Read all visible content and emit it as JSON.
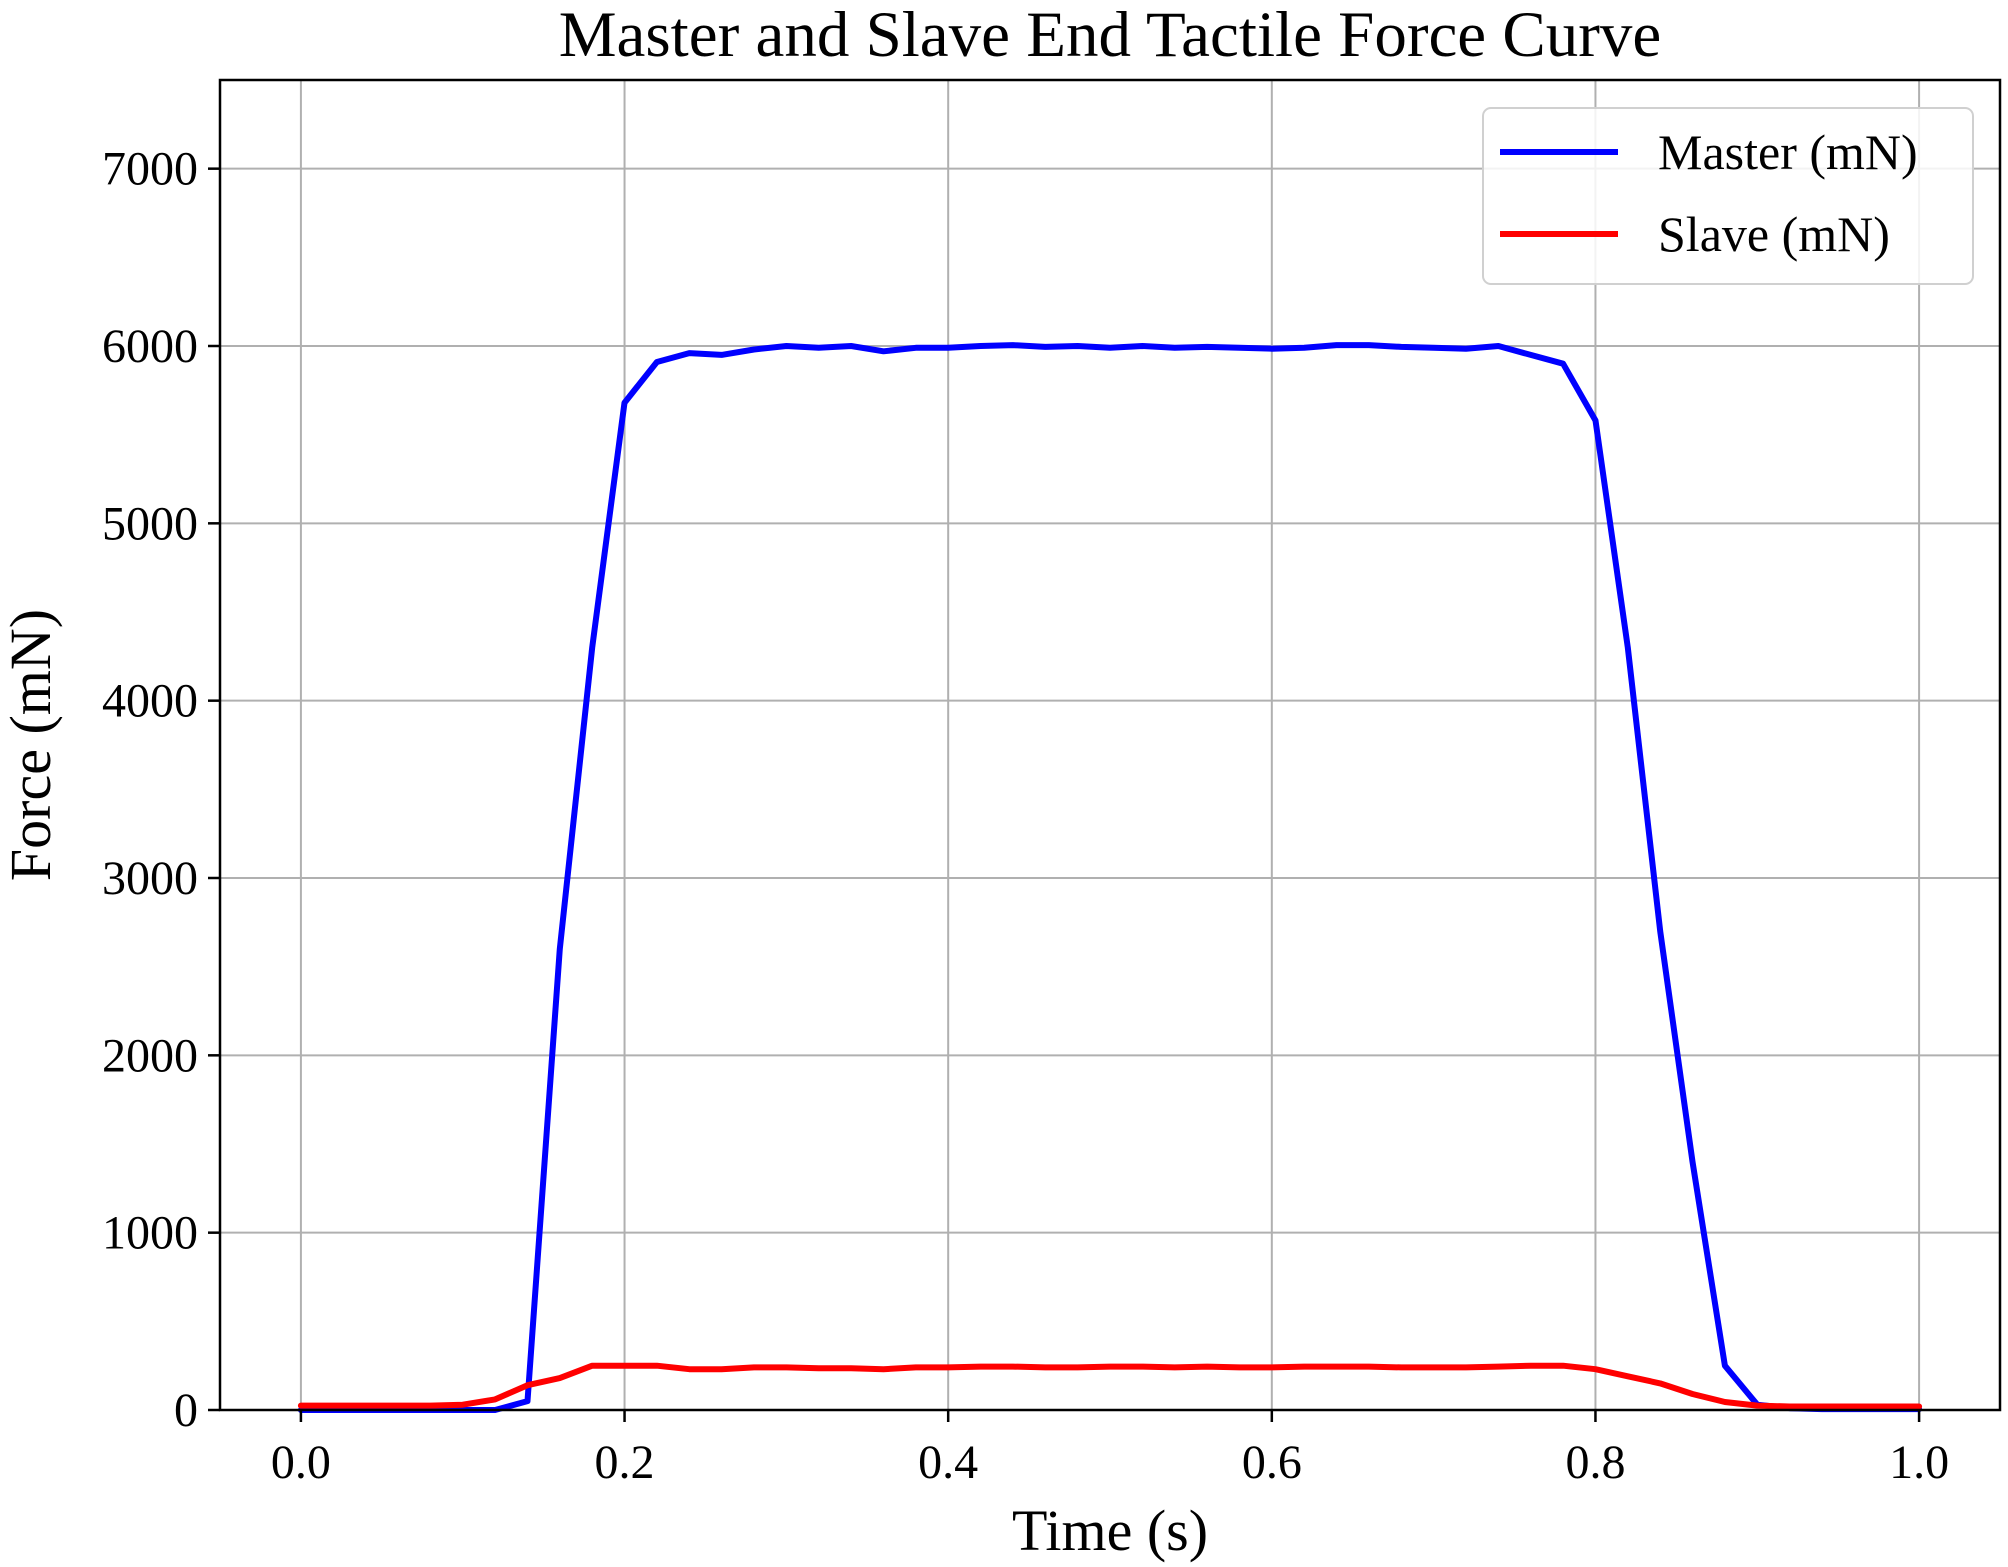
{
  "chart_data": {
    "type": "line",
    "title": "Master and Slave End Tactile Force Curve",
    "xlabel": "Time (s)",
    "ylabel": "Force (mN)",
    "xlim": [
      -0.05,
      1.05
    ],
    "ylim": [
      0,
      7500
    ],
    "x_ticks": [
      0.0,
      0.2,
      0.4,
      0.6,
      0.8,
      1.0
    ],
    "x_tick_labels": [
      "0.0",
      "0.2",
      "0.4",
      "0.6",
      "0.8",
      "1.0"
    ],
    "y_ticks": [
      0,
      1000,
      2000,
      3000,
      4000,
      5000,
      6000,
      7000
    ],
    "y_tick_labels": [
      "0",
      "1000",
      "2000",
      "3000",
      "4000",
      "5000",
      "6000",
      "7000"
    ],
    "grid": true,
    "legend_position": "upper right",
    "series": [
      {
        "name": "Master (mN)",
        "color": "#0000ff",
        "x": [
          0.0,
          0.02,
          0.04,
          0.06,
          0.08,
          0.1,
          0.12,
          0.14,
          0.16,
          0.18,
          0.2,
          0.22,
          0.24,
          0.26,
          0.28,
          0.3,
          0.32,
          0.34,
          0.36,
          0.38,
          0.4,
          0.42,
          0.44,
          0.46,
          0.48,
          0.5,
          0.52,
          0.54,
          0.56,
          0.58,
          0.6,
          0.62,
          0.64,
          0.66,
          0.68,
          0.7,
          0.72,
          0.74,
          0.76,
          0.78,
          0.8,
          0.82,
          0.84,
          0.86,
          0.88,
          0.9,
          0.92,
          0.94,
          0.96,
          0.98,
          1.0
        ],
        "y": [
          0,
          0,
          0,
          0,
          0,
          0,
          0,
          50,
          2600,
          4300,
          5680,
          5910,
          5960,
          5950,
          5980,
          6000,
          5990,
          6000,
          5970,
          5990,
          5990,
          6000,
          6005,
          5995,
          6000,
          5990,
          6000,
          5990,
          5995,
          5990,
          5985,
          5990,
          6005,
          6005,
          5995,
          5990,
          5985,
          6000,
          5950,
          5900,
          5580,
          4300,
          2700,
          1400,
          250,
          30,
          10,
          5,
          5,
          5,
          5
        ]
      },
      {
        "name": "Slave (mN)",
        "color": "#ff0000",
        "x": [
          0.0,
          0.02,
          0.04,
          0.06,
          0.08,
          0.1,
          0.12,
          0.14,
          0.16,
          0.18,
          0.2,
          0.22,
          0.24,
          0.26,
          0.28,
          0.3,
          0.32,
          0.34,
          0.36,
          0.38,
          0.4,
          0.42,
          0.44,
          0.46,
          0.48,
          0.5,
          0.52,
          0.54,
          0.56,
          0.58,
          0.6,
          0.62,
          0.64,
          0.66,
          0.68,
          0.7,
          0.72,
          0.74,
          0.76,
          0.78,
          0.8,
          0.82,
          0.84,
          0.86,
          0.88,
          0.9,
          0.92,
          0.94,
          0.96,
          0.98,
          1.0
        ],
        "y": [
          25,
          25,
          25,
          25,
          25,
          30,
          60,
          140,
          180,
          250,
          250,
          250,
          230,
          230,
          240,
          240,
          235,
          235,
          230,
          240,
          240,
          245,
          245,
          240,
          240,
          245,
          245,
          240,
          245,
          240,
          240,
          245,
          245,
          245,
          240,
          240,
          240,
          245,
          250,
          250,
          230,
          190,
          150,
          90,
          45,
          25,
          20,
          20,
          20,
          20,
          20
        ]
      }
    ]
  }
}
